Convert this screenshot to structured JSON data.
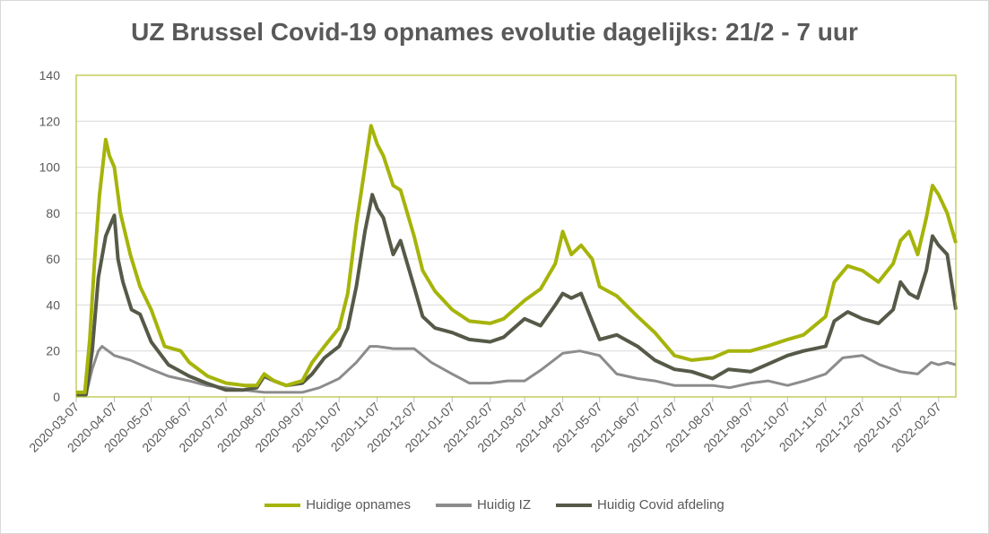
{
  "chart_data": {
    "type": "line",
    "title": "UZ Brussel Covid-19 opnames evolutie dagelijks: 21/2 - 7 uur",
    "xlabel": "",
    "ylabel": "",
    "ylim": [
      0,
      140
    ],
    "yticks": [
      "0",
      "20",
      "40",
      "60",
      "80",
      "100",
      "120",
      "140"
    ],
    "xlim": [
      "2020-03-07",
      "2022-02-21"
    ],
    "xticks": [
      "2020-03-07",
      "2020-04-07",
      "2020-05-07",
      "2020-06-07",
      "2020-07-07",
      "2020-08-07",
      "2020-09-07",
      "2020-10-07",
      "2020-11-07",
      "2020-12-07",
      "2021-01-07",
      "2021-02-07",
      "2021-03-07",
      "2021-04-07",
      "2021-05-07",
      "2021-06-07",
      "2021-07-07",
      "2021-08-07",
      "2021-09-07",
      "2021-10-07",
      "2021-11-07",
      "2021-12-07",
      "2022-01-07",
      "2022-02-07"
    ],
    "grid": true,
    "legend_position": "bottom",
    "series": [
      {
        "name": "Huidige opnames",
        "color": "#a6b40a",
        "points": [
          [
            "2020-03-07",
            2
          ],
          [
            "2020-03-14",
            2
          ],
          [
            "2020-03-18",
            25
          ],
          [
            "2020-03-22",
            60
          ],
          [
            "2020-03-26",
            88
          ],
          [
            "2020-03-31",
            112
          ],
          [
            "2020-04-03",
            105
          ],
          [
            "2020-04-07",
            100
          ],
          [
            "2020-04-12",
            80
          ],
          [
            "2020-04-20",
            62
          ],
          [
            "2020-04-28",
            48
          ],
          [
            "2020-05-07",
            38
          ],
          [
            "2020-05-18",
            22
          ],
          [
            "2020-05-31",
            20
          ],
          [
            "2020-06-07",
            15
          ],
          [
            "2020-06-22",
            9
          ],
          [
            "2020-07-07",
            6
          ],
          [
            "2020-07-22",
            5
          ],
          [
            "2020-08-01",
            5
          ],
          [
            "2020-08-07",
            10
          ],
          [
            "2020-08-15",
            7
          ],
          [
            "2020-08-25",
            5
          ],
          [
            "2020-09-07",
            7
          ],
          [
            "2020-09-15",
            15
          ],
          [
            "2020-09-25",
            22
          ],
          [
            "2020-10-07",
            30
          ],
          [
            "2020-10-14",
            45
          ],
          [
            "2020-10-21",
            75
          ],
          [
            "2020-10-28",
            100
          ],
          [
            "2020-11-02",
            118
          ],
          [
            "2020-11-07",
            110
          ],
          [
            "2020-11-12",
            105
          ],
          [
            "2020-11-20",
            92
          ],
          [
            "2020-11-26",
            90
          ],
          [
            "2020-12-07",
            70
          ],
          [
            "2020-12-14",
            55
          ],
          [
            "2020-12-24",
            46
          ],
          [
            "2021-01-07",
            38
          ],
          [
            "2021-01-21",
            33
          ],
          [
            "2021-02-07",
            32
          ],
          [
            "2021-02-18",
            34
          ],
          [
            "2021-03-07",
            42
          ],
          [
            "2021-03-20",
            47
          ],
          [
            "2021-04-01",
            58
          ],
          [
            "2021-04-07",
            72
          ],
          [
            "2021-04-14",
            62
          ],
          [
            "2021-04-22",
            66
          ],
          [
            "2021-05-01",
            60
          ],
          [
            "2021-05-07",
            48
          ],
          [
            "2021-05-21",
            44
          ],
          [
            "2021-06-07",
            35
          ],
          [
            "2021-06-21",
            28
          ],
          [
            "2021-07-07",
            18
          ],
          [
            "2021-07-21",
            16
          ],
          [
            "2021-08-07",
            17
          ],
          [
            "2021-08-20",
            20
          ],
          [
            "2021-09-07",
            20
          ],
          [
            "2021-09-20",
            22
          ],
          [
            "2021-10-07",
            25
          ],
          [
            "2021-10-20",
            27
          ],
          [
            "2021-11-07",
            35
          ],
          [
            "2021-11-14",
            50
          ],
          [
            "2021-11-25",
            57
          ],
          [
            "2021-12-07",
            55
          ],
          [
            "2021-12-20",
            50
          ],
          [
            "2022-01-01",
            58
          ],
          [
            "2022-01-07",
            68
          ],
          [
            "2022-01-14",
            72
          ],
          [
            "2022-01-21",
            62
          ],
          [
            "2022-01-28",
            78
          ],
          [
            "2022-02-02",
            92
          ],
          [
            "2022-02-07",
            88
          ],
          [
            "2022-02-14",
            80
          ],
          [
            "2022-02-21",
            67
          ]
        ]
      },
      {
        "name": "Huidig IZ",
        "color": "#8c8c8c",
        "points": [
          [
            "2020-03-07",
            1
          ],
          [
            "2020-03-15",
            1
          ],
          [
            "2020-03-20",
            12
          ],
          [
            "2020-03-25",
            20
          ],
          [
            "2020-03-28",
            22
          ],
          [
            "2020-04-07",
            18
          ],
          [
            "2020-04-20",
            16
          ],
          [
            "2020-05-07",
            12
          ],
          [
            "2020-05-21",
            9
          ],
          [
            "2020-06-07",
            7
          ],
          [
            "2020-06-21",
            5
          ],
          [
            "2020-07-07",
            4
          ],
          [
            "2020-07-21",
            3
          ],
          [
            "2020-08-07",
            2
          ],
          [
            "2020-08-21",
            2
          ],
          [
            "2020-09-07",
            2
          ],
          [
            "2020-09-21",
            4
          ],
          [
            "2020-10-07",
            8
          ],
          [
            "2020-10-21",
            15
          ],
          [
            "2020-11-01",
            22
          ],
          [
            "2020-11-07",
            22
          ],
          [
            "2020-11-20",
            21
          ],
          [
            "2020-12-07",
            21
          ],
          [
            "2020-12-21",
            15
          ],
          [
            "2021-01-07",
            10
          ],
          [
            "2021-01-21",
            6
          ],
          [
            "2021-02-07",
            6
          ],
          [
            "2021-02-21",
            7
          ],
          [
            "2021-03-07",
            7
          ],
          [
            "2021-03-21",
            12
          ],
          [
            "2021-04-07",
            19
          ],
          [
            "2021-04-21",
            20
          ],
          [
            "2021-05-07",
            18
          ],
          [
            "2021-05-21",
            10
          ],
          [
            "2021-06-07",
            8
          ],
          [
            "2021-06-21",
            7
          ],
          [
            "2021-07-07",
            5
          ],
          [
            "2021-07-21",
            5
          ],
          [
            "2021-08-07",
            5
          ],
          [
            "2021-08-21",
            4
          ],
          [
            "2021-09-07",
            6
          ],
          [
            "2021-09-21",
            7
          ],
          [
            "2021-10-07",
            5
          ],
          [
            "2021-10-21",
            7
          ],
          [
            "2021-11-07",
            10
          ],
          [
            "2021-11-21",
            17
          ],
          [
            "2021-12-07",
            18
          ],
          [
            "2021-12-21",
            14
          ],
          [
            "2022-01-07",
            11
          ],
          [
            "2022-01-21",
            10
          ],
          [
            "2022-02-01",
            15
          ],
          [
            "2022-02-07",
            14
          ],
          [
            "2022-02-14",
            15
          ],
          [
            "2022-02-21",
            14
          ]
        ]
      },
      {
        "name": "Huidig Covid afdeling",
        "color": "#555a48",
        "points": [
          [
            "2020-03-07",
            1
          ],
          [
            "2020-03-15",
            1
          ],
          [
            "2020-03-20",
            20
          ],
          [
            "2020-03-25",
            52
          ],
          [
            "2020-03-31",
            70
          ],
          [
            "2020-04-07",
            79
          ],
          [
            "2020-04-10",
            60
          ],
          [
            "2020-04-14",
            50
          ],
          [
            "2020-04-21",
            38
          ],
          [
            "2020-04-28",
            36
          ],
          [
            "2020-05-07",
            24
          ],
          [
            "2020-05-21",
            14
          ],
          [
            "2020-06-07",
            9
          ],
          [
            "2020-06-21",
            6
          ],
          [
            "2020-07-07",
            3
          ],
          [
            "2020-07-21",
            3
          ],
          [
            "2020-08-01",
            4
          ],
          [
            "2020-08-07",
            9
          ],
          [
            "2020-08-15",
            7
          ],
          [
            "2020-08-25",
            5
          ],
          [
            "2020-09-07",
            6
          ],
          [
            "2020-09-15",
            10
          ],
          [
            "2020-09-25",
            17
          ],
          [
            "2020-10-07",
            22
          ],
          [
            "2020-10-14",
            30
          ],
          [
            "2020-10-21",
            48
          ],
          [
            "2020-10-28",
            72
          ],
          [
            "2020-11-03",
            88
          ],
          [
            "2020-11-07",
            82
          ],
          [
            "2020-11-12",
            78
          ],
          [
            "2020-11-20",
            62
          ],
          [
            "2020-11-26",
            68
          ],
          [
            "2020-12-07",
            48
          ],
          [
            "2020-12-14",
            35
          ],
          [
            "2020-12-24",
            30
          ],
          [
            "2021-01-07",
            28
          ],
          [
            "2021-01-21",
            25
          ],
          [
            "2021-02-07",
            24
          ],
          [
            "2021-02-18",
            26
          ],
          [
            "2021-03-07",
            34
          ],
          [
            "2021-03-20",
            31
          ],
          [
            "2021-04-01",
            40
          ],
          [
            "2021-04-07",
            45
          ],
          [
            "2021-04-14",
            43
          ],
          [
            "2021-04-22",
            45
          ],
          [
            "2021-05-01",
            33
          ],
          [
            "2021-05-07",
            25
          ],
          [
            "2021-05-21",
            27
          ],
          [
            "2021-06-07",
            22
          ],
          [
            "2021-06-21",
            16
          ],
          [
            "2021-07-07",
            12
          ],
          [
            "2021-07-21",
            11
          ],
          [
            "2021-08-07",
            8
          ],
          [
            "2021-08-20",
            12
          ],
          [
            "2021-09-07",
            11
          ],
          [
            "2021-09-20",
            14
          ],
          [
            "2021-10-07",
            18
          ],
          [
            "2021-10-20",
            20
          ],
          [
            "2021-11-07",
            22
          ],
          [
            "2021-11-14",
            33
          ],
          [
            "2021-11-25",
            37
          ],
          [
            "2021-12-07",
            34
          ],
          [
            "2021-12-20",
            32
          ],
          [
            "2022-01-01",
            38
          ],
          [
            "2022-01-07",
            50
          ],
          [
            "2022-01-14",
            45
          ],
          [
            "2022-01-21",
            43
          ],
          [
            "2022-01-28",
            55
          ],
          [
            "2022-02-02",
            70
          ],
          [
            "2022-02-07",
            66
          ],
          [
            "2022-02-14",
            62
          ],
          [
            "2022-02-21",
            38
          ]
        ]
      }
    ]
  }
}
